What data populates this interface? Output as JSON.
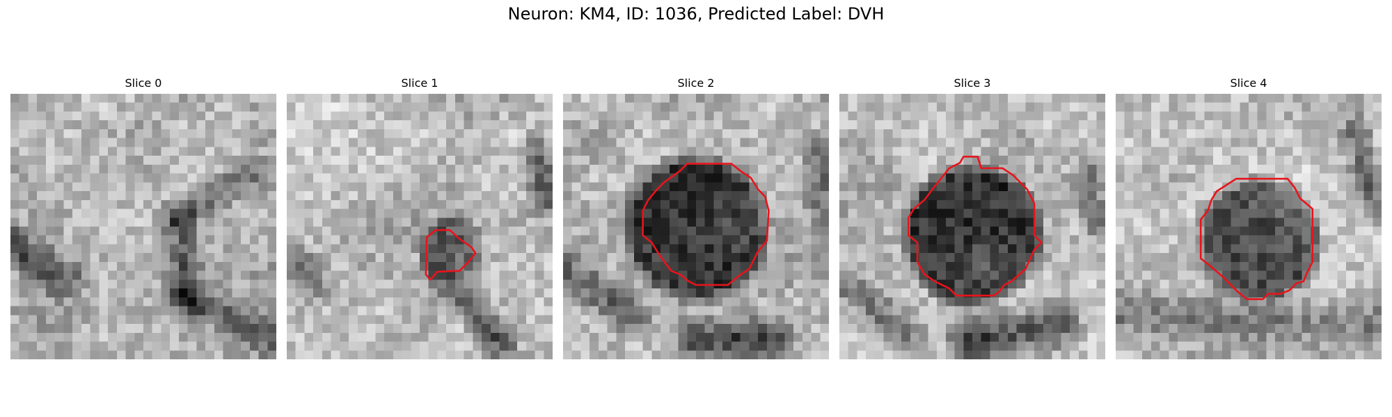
{
  "figure": {
    "title": "Neuron: KM4, ID: 1036, Predicted Label: DVH",
    "contour_color": "#e8141b",
    "image_colormap": "gray",
    "grid_size": 30
  },
  "panels": [
    {
      "title": "Slice 0"
    },
    {
      "title": "Slice 1"
    },
    {
      "title": "Slice 2"
    },
    {
      "title": "Slice 3"
    },
    {
      "title": "Slice 4"
    }
  ]
}
